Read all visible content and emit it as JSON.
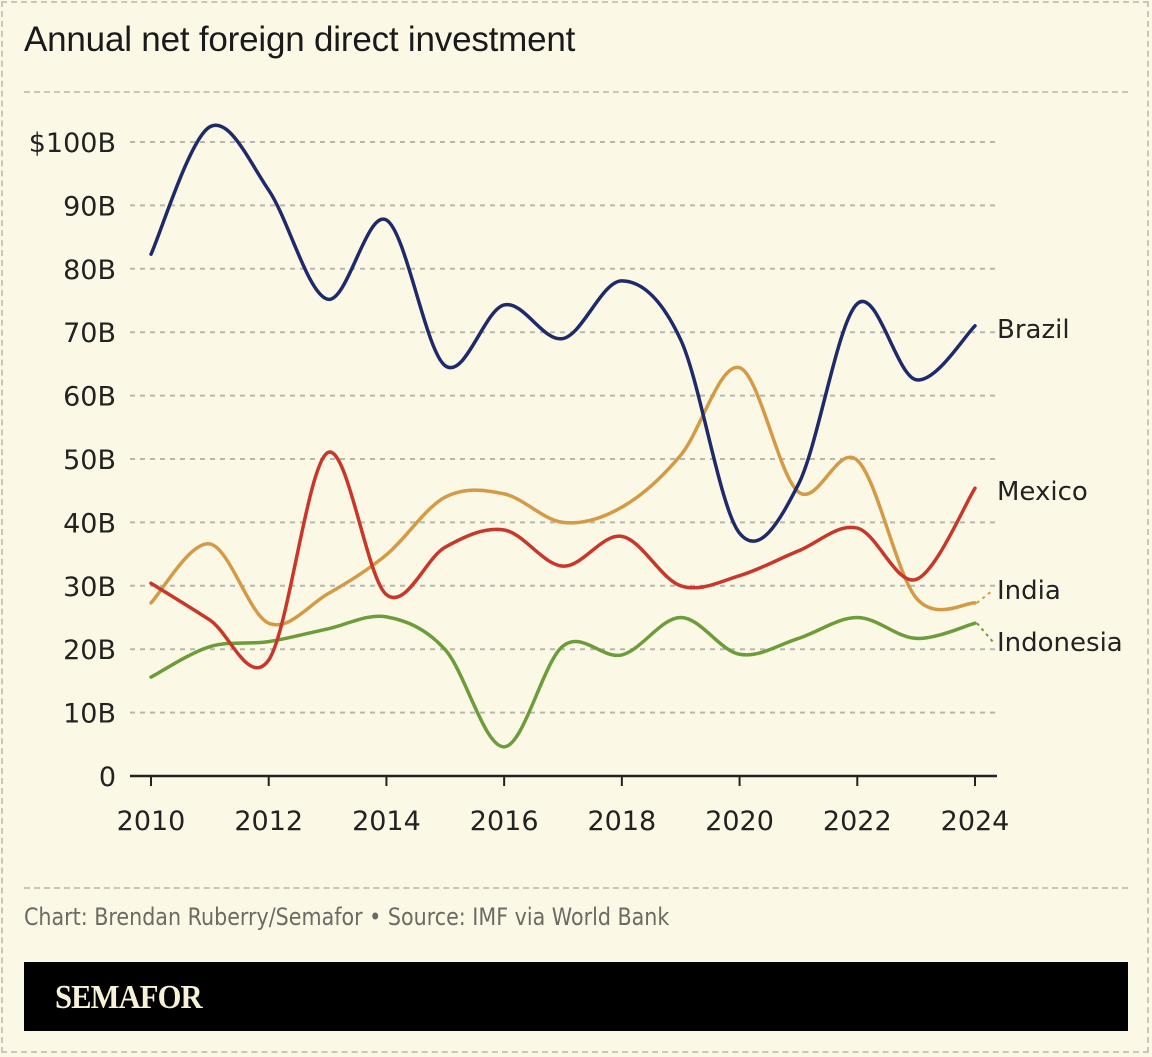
{
  "title": "Annual net foreign direct investment",
  "source": "Chart: Brendan Ruberry/Semafor • Source: IMF via World Bank",
  "brand": "SEMAFOR",
  "colors": {
    "background": "#fbf9e6",
    "Brazil": "#1f2a6b",
    "India": "#d49a45",
    "Mexico": "#c8372a",
    "Indonesia": "#6c9d3a",
    "grid": "#b9b7ab",
    "axis": "#222222"
  },
  "chart_data": {
    "type": "line",
    "title": "Annual net foreign direct investment",
    "xlabel": "",
    "ylabel": "",
    "x": [
      2010,
      2011,
      2012,
      2013,
      2014,
      2015,
      2016,
      2017,
      2018,
      2019,
      2020,
      2021,
      2022,
      2023,
      2024
    ],
    "x_ticks": [
      "2010",
      "2012",
      "2014",
      "2016",
      "2018",
      "2020",
      "2022",
      "2024"
    ],
    "x_tick_values": [
      2010,
      2012,
      2014,
      2016,
      2018,
      2020,
      2022,
      2024
    ],
    "y_ticks": [
      "0",
      "10B",
      "20B",
      "30B",
      "40B",
      "50B",
      "60B",
      "70B",
      "80B",
      "90B",
      "$100B"
    ],
    "y_tick_values": [
      0,
      10,
      20,
      30,
      40,
      50,
      60,
      70,
      80,
      90,
      100
    ],
    "ylim": [
      0,
      100
    ],
    "xlim": [
      2010,
      2024
    ],
    "units": "billions USD",
    "grid": true,
    "legend": "direct labels at line ends (right)",
    "series": [
      {
        "name": "Brazil",
        "values": [
          82.3,
          102.4,
          92.4,
          75.2,
          87.7,
          64.7,
          74.3,
          69.0,
          78.1,
          68.8,
          38.3,
          46.0,
          74.5,
          62.5,
          71.0
        ]
      },
      {
        "name": "Mexico",
        "values": [
          30.4,
          24.6,
          18.3,
          51.0,
          28.6,
          36.1,
          38.8,
          33.1,
          37.8,
          30.0,
          31.6,
          35.5,
          39.1,
          31.0,
          45.4
        ]
      },
      {
        "name": "India",
        "values": [
          27.3,
          36.6,
          24.1,
          28.7,
          34.9,
          44.0,
          44.5,
          40.0,
          42.4,
          50.6,
          64.4,
          44.8,
          49.8,
          28.1,
          27.3
        ]
      },
      {
        "name": "Indonesia",
        "values": [
          15.6,
          20.4,
          21.2,
          23.2,
          25.1,
          19.9,
          4.6,
          20.5,
          19.1,
          25.0,
          19.2,
          21.7,
          25.0,
          21.7,
          24.1
        ]
      }
    ]
  }
}
